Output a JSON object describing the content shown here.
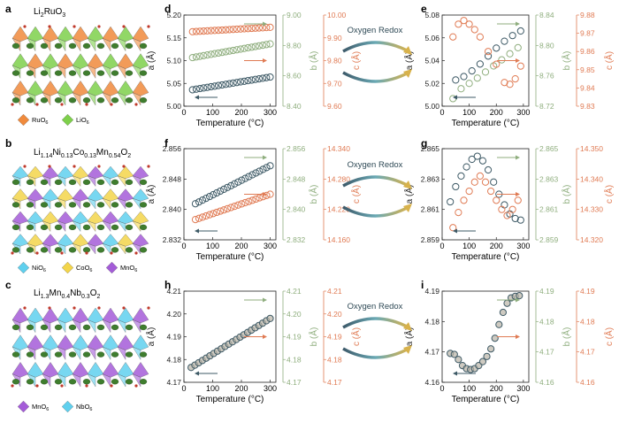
{
  "panel_labels": {
    "a": "a",
    "b": "b",
    "c": "c",
    "d": "d",
    "e": "e",
    "f": "f",
    "g": "g",
    "h": "h",
    "i": "i"
  },
  "crystals": [
    {
      "formula_main": "Li",
      "formula_parts": [
        [
          "Li",
          ""
        ],
        [
          "2",
          ""
        ],
        [
          "RuO",
          ""
        ],
        [
          "3",
          ""
        ]
      ],
      "title": "Li2RuO3",
      "legend": [
        {
          "label": "RuO",
          "sub": "6",
          "color": "#f08a3c"
        },
        {
          "label": "LiO",
          "sub": "6",
          "color": "#7ed04b"
        }
      ]
    },
    {
      "title": "Li1.14Ni0.13Co0.13Mn0.54O2",
      "legend": [
        {
          "label": "NiO",
          "sub": "6",
          "color": "#5fd0ee"
        },
        {
          "label": "CoO",
          "sub": "6",
          "color": "#f3d54a"
        },
        {
          "label": "MnO",
          "sub": "6",
          "color": "#a45cd8"
        }
      ]
    },
    {
      "title": "Li1.3Mn0.4Nb0.3O2",
      "legend": [
        {
          "label": "MnO",
          "sub": "6",
          "color": "#a45cd8"
        },
        {
          "label": "NbO",
          "sub": "6",
          "color": "#5fd0ee"
        }
      ]
    }
  ],
  "formulas": [
    [
      {
        "t": "Li"
      },
      {
        "s": "2"
      },
      {
        "t": "RuO"
      },
      {
        "s": "3"
      }
    ],
    [
      {
        "t": "Li"
      },
      {
        "s": "1.14"
      },
      {
        "t": "Ni"
      },
      {
        "s": "0.13"
      },
      {
        "t": "Co"
      },
      {
        "s": "0.13"
      },
      {
        "t": "Mn"
      },
      {
        "s": "0.54"
      },
      {
        "t": "O"
      },
      {
        "s": "2"
      }
    ],
    [
      {
        "t": "Li"
      },
      {
        "s": "1.3"
      },
      {
        "t": "Mn"
      },
      {
        "s": "0.4"
      },
      {
        "t": "Nb"
      },
      {
        "s": "0.3"
      },
      {
        "t": "O"
      },
      {
        "s": "2"
      }
    ]
  ],
  "redox_label": "Oxygen Redox",
  "colors": {
    "a": "#3e5a66",
    "b": "#8fae7e",
    "c": "#e07b54"
  },
  "chart_data": [
    {
      "panel": "d",
      "type": "scatter",
      "xlabel": "Temperature (°C)",
      "x_ticks": [
        "0",
        "100",
        "200",
        "300"
      ],
      "a": {
        "label": "a (Å)",
        "ticks": [
          "5.20",
          "5.15",
          "5.10",
          "5.05",
          "5.00"
        ],
        "ylim": [
          5.0,
          5.2
        ]
      },
      "b": {
        "label": "b (Å)",
        "ticks": [
          "9.00",
          "8.80",
          "8.60",
          "8.40"
        ],
        "ylim": [
          8.4,
          9.0
        ]
      },
      "c": {
        "label": "c (Å)",
        "ticks": [
          "10.00",
          "9.90",
          "9.80",
          "9.70",
          "9.60"
        ],
        "ylim": [
          9.6,
          10.0
        ]
      },
      "series": [
        {
          "name": "a",
          "x": [
            30,
            300
          ],
          "y": [
            5.036,
            5.064
          ]
        },
        {
          "name": "b",
          "x": [
            30,
            300
          ],
          "y": [
            8.72,
            8.81
          ]
        },
        {
          "name": "c",
          "x": [
            30,
            300
          ],
          "y": [
            9.927,
            9.946
          ]
        }
      ]
    },
    {
      "panel": "e",
      "type": "scatter",
      "xlabel": "Temperature (°C)",
      "x_ticks": [
        "0",
        "100",
        "200",
        "300"
      ],
      "a": {
        "label": "a (Å)",
        "ticks": [
          "5.08",
          "5.06",
          "5.04",
          "5.02",
          "5.00"
        ],
        "ylim": [
          5.0,
          5.08
        ]
      },
      "b": {
        "label": "b (Å)",
        "ticks": [
          "8.84",
          "8.80",
          "8.76",
          "8.72"
        ],
        "ylim": [
          8.72,
          8.84
        ]
      },
      "c": {
        "label": "c (Å)",
        "ticks": [
          "9.88",
          "9.87",
          "9.86",
          "9.85",
          "9.84",
          "9.83"
        ],
        "ylim": [
          9.83,
          9.88
        ]
      },
      "series": [
        {
          "name": "a",
          "x": [
            50,
            80,
            110,
            140,
            170,
            200,
            230,
            260,
            290
          ],
          "y": [
            5.023,
            5.026,
            5.031,
            5.037,
            5.044,
            5.051,
            5.057,
            5.062,
            5.066
          ]
        },
        {
          "name": "b",
          "x": [
            40,
            70,
            100,
            130,
            160,
            190,
            220,
            250,
            280
          ],
          "y": [
            8.73,
            8.743,
            8.75,
            8.757,
            8.765,
            8.773,
            8.781,
            8.789,
            8.797
          ]
        },
        {
          "name": "c",
          "x": [
            40,
            60,
            80,
            100,
            120,
            140,
            170,
            200,
            230,
            250,
            270,
            290
          ],
          "y": [
            9.868,
            9.875,
            9.877,
            9.875,
            9.872,
            9.868,
            9.86,
            9.853,
            9.843,
            9.842,
            9.845,
            9.852
          ]
        }
      ]
    },
    {
      "panel": "f",
      "type": "scatter",
      "xlabel": "Temperature (°C)",
      "x_ticks": [
        "0",
        "100",
        "200",
        "300"
      ],
      "a": {
        "label": "a (Å)",
        "ticks": [
          "2.856",
          "2.848",
          "2.840",
          "2.832"
        ],
        "ylim": [
          2.832,
          2.856
        ]
      },
      "b": {
        "label": "b (Å)",
        "ticks": [
          "2.856",
          "2.848",
          "2.840",
          "2.832"
        ],
        "ylim": [
          2.832,
          2.856
        ]
      },
      "c": {
        "label": "c (Å)",
        "ticks": [
          "14.340",
          "14.280",
          "14.220",
          "14.160"
        ],
        "ylim": [
          14.16,
          14.34
        ]
      },
      "series": [
        {
          "name": "a",
          "x": [
            40,
            300
          ],
          "y": [
            2.8415,
            2.8515
          ]
        },
        {
          "name": "c",
          "x": [
            40,
            300
          ],
          "y": [
            14.2,
            14.25
          ]
        }
      ]
    },
    {
      "panel": "g",
      "type": "scatter",
      "xlabel": "Temperature (°C)",
      "x_ticks": [
        "0",
        "100",
        "200",
        "300"
      ],
      "a": {
        "label": "a (Å)",
        "ticks": [
          "2.865",
          "2.863",
          "2.861",
          "2.859"
        ],
        "ylim": [
          2.859,
          2.865
        ]
      },
      "b": {
        "label": "b (Å)",
        "ticks": [
          "2.865",
          "2.863",
          "2.861",
          "2.859"
        ],
        "ylim": [
          2.859,
          2.865
        ]
      },
      "c": {
        "label": "c (Å)",
        "ticks": [
          "14.350",
          "14.340",
          "14.330",
          "14.320"
        ],
        "ylim": [
          14.32,
          14.35
        ]
      },
      "series": [
        {
          "name": "a",
          "x": [
            30,
            50,
            70,
            90,
            110,
            130,
            150,
            170,
            190,
            210,
            230,
            250,
            270,
            290
          ],
          "y": [
            2.8615,
            2.8625,
            2.8632,
            2.8638,
            2.8643,
            2.8645,
            2.8642,
            2.8636,
            2.8628,
            2.862,
            2.8613,
            2.8607,
            2.8604,
            2.8603
          ]
        },
        {
          "name": "c",
          "x": [
            40,
            60,
            80,
            100,
            120,
            140,
            160,
            180,
            200,
            220,
            240,
            260,
            280
          ],
          "y": [
            14.324,
            14.329,
            14.333,
            14.336,
            14.339,
            14.341,
            14.339,
            14.336,
            14.333,
            14.33,
            14.328,
            14.33,
            14.333
          ]
        }
      ]
    },
    {
      "panel": "h",
      "type": "scatter",
      "xlabel": "Temperature (°C)",
      "x_ticks": [
        "0",
        "100",
        "200",
        "300"
      ],
      "a": {
        "label": "a (Å)",
        "ticks": [
          "4.21",
          "4.20",
          "4.19",
          "4.18",
          "4.17"
        ],
        "ylim": [
          4.17,
          4.21
        ]
      },
      "b": {
        "label": "b (Å)",
        "ticks": [
          "4.21",
          "4.20",
          "4.19",
          "4.18",
          "4.17"
        ],
        "ylim": [
          4.17,
          4.21
        ]
      },
      "c": {
        "label": "c (Å)",
        "ticks": [
          "4.21",
          "4.20",
          "4.19",
          "4.18",
          "4.17"
        ],
        "ylim": [
          4.17,
          4.21
        ]
      },
      "series": [
        {
          "name": "a",
          "x": [
            25,
            300
          ],
          "y": [
            4.1765,
            4.198
          ]
        }
      ]
    },
    {
      "panel": "i",
      "type": "scatter",
      "xlabel": "Temperature (°C)",
      "x_ticks": [
        "0",
        "100",
        "200",
        "300"
      ],
      "a": {
        "label": "a (Å)",
        "ticks": [
          "4.19",
          "4.18",
          "4.17",
          "4.16"
        ],
        "ylim": [
          4.16,
          4.19
        ]
      },
      "b": {
        "label": "b (Å)",
        "ticks": [
          "4.19",
          "4.18",
          "4.17",
          "4.16"
        ],
        "ylim": [
          4.16,
          4.19
        ]
      },
      "c": {
        "label": "c (Å)",
        "ticks": [
          "4.19",
          "4.18",
          "4.17",
          "4.16"
        ],
        "ylim": [
          4.16,
          4.19
        ]
      },
      "series": [
        {
          "name": "a",
          "x": [
            30,
            45,
            60,
            75,
            90,
            105,
            120,
            135,
            150,
            165,
            180,
            195,
            210,
            225,
            240,
            255,
            270,
            285
          ],
          "y": [
            4.1695,
            4.1692,
            4.1675,
            4.1655,
            4.1645,
            4.1642,
            4.1645,
            4.1655,
            4.1668,
            4.1685,
            4.171,
            4.1745,
            4.179,
            4.183,
            4.186,
            4.1878,
            4.1883,
            4.1885
          ]
        }
      ]
    }
  ]
}
